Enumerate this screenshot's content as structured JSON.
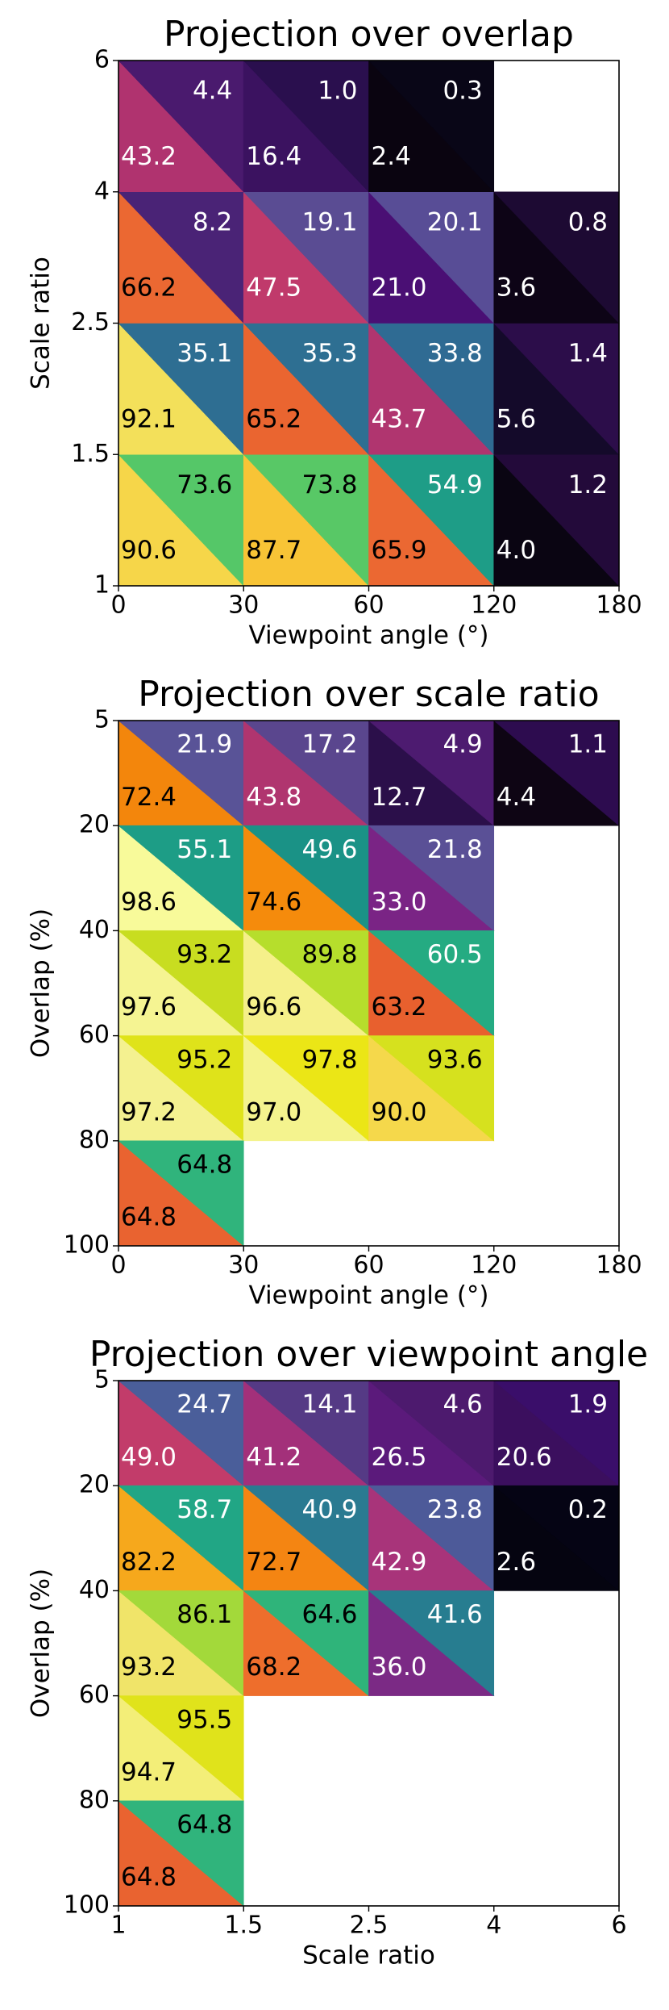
{
  "chart_data": [
    {
      "type": "heatmap",
      "title": "Projection over overlap",
      "xlabel": "Viewpoint angle (°)",
      "ylabel": "Scale ratio",
      "x_edges": [
        0,
        30,
        60,
        120,
        180
      ],
      "y_edges": [
        1,
        1.5,
        2.5,
        4,
        6
      ],
      "y_inverted": false,
      "upper": {
        "values": [
          [
            73.6,
            73.8,
            54.9,
            1.2
          ],
          [
            35.1,
            35.3,
            33.8,
            1.4
          ],
          [
            8.2,
            19.1,
            20.1,
            0.8
          ],
          [
            4.4,
            1.0,
            0.3,
            null
          ]
        ],
        "value_labels": [
          [
            "73.6",
            "73.8",
            "54.9",
            "1.2"
          ],
          [
            "35.1",
            "35.3",
            "33.8",
            "1.4"
          ],
          [
            "8.2",
            "19.1",
            "20.1",
            "0.8"
          ],
          [
            "4.4",
            "1.0",
            "0.3",
            null
          ]
        ],
        "colors": [
          [
            "#55c768",
            "#58c866",
            "#1e9d87",
            "#230a3a"
          ],
          [
            "#2e6e92",
            "#2e6f92",
            "#2f6b93",
            "#2c0d4a"
          ],
          [
            "#4a2376",
            "#5a4c93",
            "#584d96",
            "#1d0a33"
          ],
          [
            "#4a1a6e",
            "#2a0f4e",
            "#090617",
            null
          ]
        ]
      },
      "lower": {
        "values": [
          [
            90.6,
            87.7,
            65.9,
            4.0
          ],
          [
            92.1,
            65.2,
            43.7,
            5.6
          ],
          [
            66.2,
            47.5,
            21.0,
            3.6
          ],
          [
            43.2,
            16.4,
            2.4,
            null
          ]
        ],
        "value_labels": [
          [
            "90.6",
            "87.7",
            "65.9",
            "4.0"
          ],
          [
            "92.1",
            "65.2",
            "43.7",
            "5.6"
          ],
          [
            "66.2",
            "47.5",
            "21.0",
            "3.6"
          ],
          [
            "43.2",
            "16.4",
            "2.4",
            null
          ]
        ],
        "colors": [
          [
            "#f6d649",
            "#f8c436",
            "#eb6832",
            "#0a0512"
          ],
          [
            "#f3e05a",
            "#ea6530",
            "#b0356f",
            "#140a2a"
          ],
          [
            "#eb6832",
            "#c03a6b",
            "#4a0f74",
            "#0d0416"
          ],
          [
            "#b0336f",
            "#3b1260",
            "#0a0410",
            null
          ]
        ]
      }
    },
    {
      "type": "heatmap",
      "title": "Projection over scale ratio",
      "xlabel": "Viewpoint angle (°)",
      "ylabel": "Overlap (%)",
      "x_edges": [
        0,
        30,
        60,
        120,
        180
      ],
      "y_edges": [
        5,
        20,
        40,
        60,
        80,
        100
      ],
      "y_inverted": true,
      "upper": {
        "values": [
          [
            21.9,
            17.2,
            4.9,
            1.1
          ],
          [
            55.1,
            49.6,
            21.8,
            null
          ],
          [
            93.2,
            89.8,
            60.5,
            null
          ],
          [
            95.2,
            97.8,
            93.6,
            null
          ],
          [
            64.8,
            null,
            null,
            null
          ]
        ],
        "value_labels": [
          [
            "21.9",
            "17.2",
            "4.9",
            "1.1"
          ],
          [
            "55.1",
            "49.6",
            "21.8",
            null
          ],
          [
            "93.2",
            "89.8",
            "60.5",
            null
          ],
          [
            "95.2",
            "97.8",
            "93.6",
            null
          ],
          [
            "64.8",
            null,
            null,
            null
          ]
        ],
        "colors": [
          [
            "#595397",
            "#5a468e",
            "#4d1b70",
            "#2d0c4f"
          ],
          [
            "#1d9d86",
            "#1a9286",
            "#5a5096",
            null
          ],
          [
            "#c8dd20",
            "#b6de2c",
            "#25ab82",
            null
          ],
          [
            "#dfe31a",
            "#ebe616",
            "#d6e11e",
            null
          ],
          [
            "#30b47c",
            null,
            null,
            null
          ]
        ]
      },
      "lower": {
        "values": [
          [
            72.4,
            43.8,
            12.7,
            4.4
          ],
          [
            98.6,
            74.6,
            33.0,
            null
          ],
          [
            97.6,
            96.6,
            63.2,
            null
          ],
          [
            97.2,
            97.0,
            90.0,
            null
          ],
          [
            64.8,
            null,
            null,
            null
          ]
        ],
        "value_labels": [
          [
            "72.4",
            "43.8",
            "12.7",
            "4.4"
          ],
          [
            "98.6",
            "74.6",
            "33.0",
            null
          ],
          [
            "97.6",
            "96.6",
            "63.2",
            null
          ],
          [
            "97.2",
            "97.0",
            "90.0",
            null
          ],
          [
            "64.8",
            null,
            null,
            null
          ]
        ],
        "colors": [
          [
            "#f3860c",
            "#b0356f",
            "#2b0f4a",
            "#0e0514"
          ],
          [
            "#f8fa9a",
            "#f58b0c",
            "#7a2485",
            null
          ],
          [
            "#f5f492",
            "#f5f08a",
            "#e8602e",
            null
          ],
          [
            "#f4f190",
            "#f4f38e",
            "#f5d84b",
            null
          ],
          [
            "#e96330",
            null,
            null,
            null
          ]
        ]
      }
    },
    {
      "type": "heatmap",
      "title": "Projection over viewpoint angle",
      "xlabel": "Scale ratio",
      "ylabel": "Overlap (%)",
      "x_edges": [
        1,
        1.5,
        2.5,
        4,
        6
      ],
      "y_edges": [
        5,
        20,
        40,
        60,
        80,
        100
      ],
      "y_inverted": true,
      "upper": {
        "values": [
          [
            24.7,
            14.1,
            4.6,
            1.9
          ],
          [
            58.7,
            40.9,
            23.8,
            0.2
          ],
          [
            86.1,
            64.6,
            41.6,
            null
          ],
          [
            95.5,
            null,
            null,
            null
          ],
          [
            64.8,
            null,
            null,
            null
          ]
        ],
        "value_labels": [
          [
            "24.7",
            "14.1",
            "4.6",
            "1.9"
          ],
          [
            "58.7",
            "40.9",
            "23.8",
            "0.2"
          ],
          [
            "86.1",
            "64.6",
            "41.6",
            null
          ],
          [
            "95.5",
            null,
            null,
            null
          ],
          [
            "64.8",
            null,
            null,
            null
          ]
        ],
        "colors": [
          [
            "#4a5e9a",
            "#553a85",
            "#4d1a6e",
            "#3a0e6a"
          ],
          [
            "#21a685",
            "#2a7a91",
            "#4d5a99",
            "#050414"
          ],
          [
            "#a3d93a",
            "#2fb47a",
            "#277d90",
            null
          ],
          [
            "#e0e31b",
            null,
            null,
            null
          ],
          [
            "#30b47c",
            null,
            null,
            null
          ]
        ]
      },
      "lower": {
        "values": [
          [
            49.0,
            41.2,
            26.5,
            20.6
          ],
          [
            82.2,
            72.7,
            42.9,
            2.6
          ],
          [
            93.2,
            68.2,
            36.0,
            null
          ],
          [
            94.7,
            null,
            null,
            null
          ],
          [
            64.8,
            null,
            null,
            null
          ]
        ],
        "value_labels": [
          [
            "49.0",
            "41.2",
            "26.5",
            "20.6"
          ],
          [
            "82.2",
            "72.7",
            "42.9",
            "2.6"
          ],
          [
            "93.2",
            "68.2",
            "36.0",
            null
          ],
          [
            "94.7",
            null,
            null,
            null
          ],
          [
            "64.8",
            null,
            null,
            null
          ]
        ],
        "colors": [
          [
            "#c23c6a",
            "#a3307a",
            "#5b1a7b",
            "#3b0f5e"
          ],
          [
            "#f6a81c",
            "#f48512",
            "#a8347a",
            "#050410"
          ],
          [
            "#f0e469",
            "#ee6e2c",
            "#7b2a85",
            null
          ],
          [
            "#f3ee78",
            null,
            null,
            null
          ],
          [
            "#e96330",
            null,
            null,
            null
          ]
        ]
      }
    }
  ]
}
